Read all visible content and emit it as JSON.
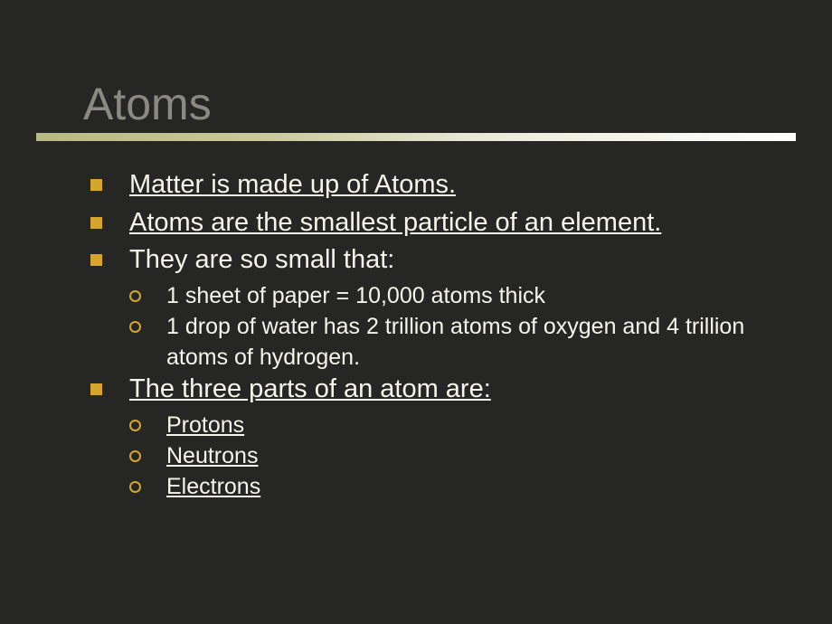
{
  "slide": {
    "title": "Atoms",
    "background_color": "#262624",
    "title_color": "#8a8a82",
    "text_color": "#f5f5ec",
    "bullet_color": "#d6a52b",
    "divider_gradient_start": "#b9b985",
    "divider_gradient_end": "#ffffff",
    "bullets": [
      {
        "text": "Matter is made up of Atoms.",
        "underline": true,
        "subs": []
      },
      {
        "text": "Atoms are the smallest particle of an element.",
        "underline": true,
        "subs": []
      },
      {
        "text": "They are so small that:",
        "underline": false,
        "subs": [
          {
            "text": "1 sheet of paper = 10,000 atoms thick",
            "underline": false
          },
          {
            "text": "1 drop of water has 2 trillion atoms of oxygen and 4 trillion atoms of hydrogen.",
            "underline": false
          }
        ]
      },
      {
        "text": "The three parts of an atom are:",
        "underline": true,
        "subs": [
          {
            "text": "Protons",
            "underline": true
          },
          {
            "text": "Neutrons",
            "underline": true
          },
          {
            "text": "Electrons",
            "underline": true
          }
        ]
      }
    ]
  }
}
